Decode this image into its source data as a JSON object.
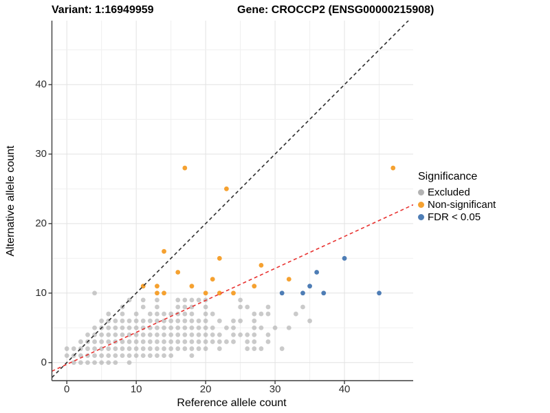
{
  "titles": {
    "variant": "Variant: 1:16949959",
    "gene": "Gene: CROCCP2 (ENSG00000215908)"
  },
  "axes": {
    "x_label": "Reference allele count",
    "y_label": "Alternative allele count",
    "x_ticks": [
      0,
      10,
      20,
      30,
      40
    ],
    "y_ticks": [
      0,
      10,
      20,
      30,
      40
    ]
  },
  "legend": {
    "title": "Significance",
    "items": [
      {
        "label": "Excluded",
        "color": "#b3b3b3"
      },
      {
        "label": "Non-significant",
        "color": "#f5a130"
      },
      {
        "label": "FDR < 0.05",
        "color": "#4e7db5"
      }
    ]
  },
  "colors": {
    "grid_major": "#e2e2e2",
    "grid_minor": "#efefef",
    "axis_line": "#3d3d3d",
    "identity_line": "#2d2d2d",
    "fit_line": "#e8312f"
  },
  "chart_data": {
    "type": "scatter",
    "xlabel": "Reference allele count",
    "ylabel": "Alternative allele count",
    "xlim": [
      -2.15,
      49.9
    ],
    "ylim": [
      -2.6,
      49.2
    ],
    "grid": true,
    "legend_position": "right",
    "series": [
      {
        "name": "Excluded",
        "color": "#b3b3b3",
        "opacity": 0.7,
        "points": [
          [
            1,
            0
          ],
          [
            2,
            0
          ],
          [
            3,
            0
          ],
          [
            4,
            0
          ],
          [
            5,
            0
          ],
          [
            6,
            0
          ],
          [
            7,
            0
          ],
          [
            9,
            0
          ],
          [
            0,
            1
          ],
          [
            1,
            1
          ],
          [
            2,
            1
          ],
          [
            3,
            1
          ],
          [
            4,
            1
          ],
          [
            5,
            1
          ],
          [
            6,
            1
          ],
          [
            7,
            1
          ],
          [
            8,
            1
          ],
          [
            9,
            1
          ],
          [
            10,
            1
          ],
          [
            11,
            1
          ],
          [
            12,
            1
          ],
          [
            13,
            1
          ],
          [
            14,
            1
          ],
          [
            15,
            1
          ],
          [
            18,
            1
          ],
          [
            0,
            2
          ],
          [
            1,
            2
          ],
          [
            2,
            2
          ],
          [
            3,
            2
          ],
          [
            4,
            2
          ],
          [
            5,
            2
          ],
          [
            6,
            2
          ],
          [
            7,
            2
          ],
          [
            8,
            2
          ],
          [
            9,
            2
          ],
          [
            10,
            2
          ],
          [
            11,
            2
          ],
          [
            12,
            2
          ],
          [
            13,
            2
          ],
          [
            14,
            2
          ],
          [
            15,
            2
          ],
          [
            16,
            2
          ],
          [
            17,
            2
          ],
          [
            18,
            2
          ],
          [
            19,
            2
          ],
          [
            20,
            2
          ],
          [
            22,
            2
          ],
          [
            26,
            2
          ],
          [
            27,
            2
          ],
          [
            28,
            2
          ],
          [
            31,
            2
          ],
          [
            2,
            3
          ],
          [
            3,
            3
          ],
          [
            4,
            3
          ],
          [
            5,
            3
          ],
          [
            6,
            3
          ],
          [
            7,
            3
          ],
          [
            8,
            3
          ],
          [
            9,
            3
          ],
          [
            10,
            3
          ],
          [
            11,
            3
          ],
          [
            12,
            3
          ],
          [
            13,
            3
          ],
          [
            14,
            3
          ],
          [
            15,
            3
          ],
          [
            16,
            3
          ],
          [
            17,
            3
          ],
          [
            18,
            3
          ],
          [
            19,
            3
          ],
          [
            20,
            3
          ],
          [
            21,
            3
          ],
          [
            22,
            3
          ],
          [
            23,
            3
          ],
          [
            24,
            3
          ],
          [
            26,
            3
          ],
          [
            27,
            3
          ],
          [
            29,
            3
          ],
          [
            3,
            4
          ],
          [
            4,
            4
          ],
          [
            5,
            4
          ],
          [
            6,
            4
          ],
          [
            7,
            4
          ],
          [
            8,
            4
          ],
          [
            9,
            4
          ],
          [
            10,
            4
          ],
          [
            11,
            4
          ],
          [
            12,
            4
          ],
          [
            13,
            4
          ],
          [
            14,
            4
          ],
          [
            15,
            4
          ],
          [
            16,
            4
          ],
          [
            17,
            4
          ],
          [
            18,
            4
          ],
          [
            19,
            4
          ],
          [
            20,
            4
          ],
          [
            21,
            4
          ],
          [
            22,
            4
          ],
          [
            24,
            4
          ],
          [
            25,
            4
          ],
          [
            26,
            4
          ],
          [
            27,
            4
          ],
          [
            29,
            4
          ],
          [
            4,
            5
          ],
          [
            5,
            5
          ],
          [
            6,
            5
          ],
          [
            7,
            5
          ],
          [
            8,
            5
          ],
          [
            9,
            5
          ],
          [
            10,
            5
          ],
          [
            11,
            5
          ],
          [
            12,
            5
          ],
          [
            13,
            5
          ],
          [
            14,
            5
          ],
          [
            15,
            5
          ],
          [
            16,
            5
          ],
          [
            17,
            5
          ],
          [
            18,
            5
          ],
          [
            19,
            5
          ],
          [
            20,
            5
          ],
          [
            21,
            5
          ],
          [
            23,
            5
          ],
          [
            24,
            5
          ],
          [
            27,
            5
          ],
          [
            28,
            5
          ],
          [
            30,
            5
          ],
          [
            32,
            5
          ],
          [
            5,
            6
          ],
          [
            6,
            6
          ],
          [
            7,
            6
          ],
          [
            8,
            6
          ],
          [
            9,
            6
          ],
          [
            10,
            6
          ],
          [
            11,
            6
          ],
          [
            12,
            6
          ],
          [
            13,
            6
          ],
          [
            14,
            6
          ],
          [
            15,
            6
          ],
          [
            16,
            6
          ],
          [
            17,
            6
          ],
          [
            18,
            6
          ],
          [
            19,
            6
          ],
          [
            20,
            6
          ],
          [
            22,
            6
          ],
          [
            24,
            6
          ],
          [
            25,
            6
          ],
          [
            27,
            6
          ],
          [
            35,
            6
          ],
          [
            6,
            7
          ],
          [
            8,
            7
          ],
          [
            10,
            7
          ],
          [
            12,
            7
          ],
          [
            13,
            7
          ],
          [
            14,
            7
          ],
          [
            15,
            7
          ],
          [
            16,
            7
          ],
          [
            17,
            7
          ],
          [
            18,
            7
          ],
          [
            20,
            7
          ],
          [
            21,
            7
          ],
          [
            27,
            7
          ],
          [
            28,
            7
          ],
          [
            29,
            7
          ],
          [
            33,
            7
          ],
          [
            8,
            8
          ],
          [
            11,
            8
          ],
          [
            13,
            8
          ],
          [
            16,
            8
          ],
          [
            17,
            8
          ],
          [
            18,
            8
          ],
          [
            20,
            8
          ],
          [
            25,
            8
          ],
          [
            26,
            8
          ],
          [
            29,
            8
          ],
          [
            34,
            8
          ],
          [
            9,
            9
          ],
          [
            11,
            9
          ],
          [
            13,
            9
          ],
          [
            16,
            9
          ],
          [
            17,
            9
          ],
          [
            18,
            9
          ],
          [
            19,
            9
          ],
          [
            20,
            9
          ],
          [
            25,
            9
          ],
          [
            4,
            10
          ]
        ]
      },
      {
        "name": "Non-significant",
        "color": "#f5a130",
        "opacity": 1,
        "points": [
          [
            11,
            11
          ],
          [
            13,
            10
          ],
          [
            13,
            11
          ],
          [
            14,
            10
          ],
          [
            14,
            16
          ],
          [
            16,
            13
          ],
          [
            17,
            28
          ],
          [
            18,
            11
          ],
          [
            20,
            10
          ],
          [
            21,
            12
          ],
          [
            22,
            10
          ],
          [
            22,
            15
          ],
          [
            23,
            25
          ],
          [
            24,
            10
          ],
          [
            27,
            11
          ],
          [
            28,
            14
          ],
          [
            32,
            12
          ],
          [
            47,
            28
          ]
        ]
      },
      {
        "name": "FDR < 0.05",
        "color": "#4e7db5",
        "opacity": 1,
        "points": [
          [
            31,
            10
          ],
          [
            34,
            10
          ],
          [
            35,
            11
          ],
          [
            36,
            13
          ],
          [
            37,
            10
          ],
          [
            40,
            15
          ],
          [
            45,
            10
          ]
        ]
      }
    ],
    "lines": [
      {
        "name": "identity",
        "slope": 1,
        "intercept": 0,
        "color": "#2d2d2d",
        "dash": "5,4"
      },
      {
        "name": "fit",
        "slope": 0.46,
        "intercept": -0.25,
        "color": "#e8312f",
        "dash": "5,4"
      }
    ]
  }
}
